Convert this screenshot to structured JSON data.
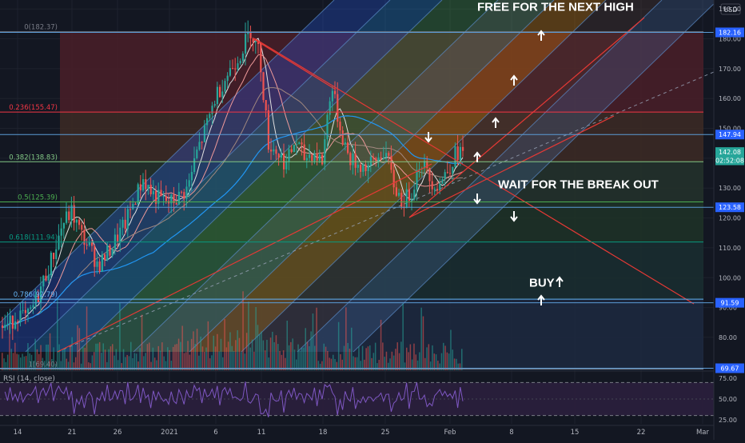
{
  "chart_data": {
    "type": "candlestick",
    "currency_label": "USD",
    "indicator_label": "RSI (14, close)",
    "price_axis": {
      "ylim": [
        69,
        193
      ],
      "ticks": [
        "190.00",
        "180.00",
        "170.00",
        "160.00",
        "150.00",
        "140.00",
        "130.00",
        "120.00",
        "110.00",
        "100.00",
        "90.00",
        "80.00"
      ]
    },
    "rsi_axis": {
      "ylim": [
        20,
        82
      ],
      "ticks": [
        "75.00",
        "50.00",
        "25.00"
      ],
      "overbought": 70,
      "oversold": 30
    },
    "date_axis": {
      "labels": [
        "14",
        "21",
        "26",
        "2021",
        "6",
        "11",
        "18",
        "25",
        "Feb",
        "8",
        "15",
        "22",
        "Mar"
      ]
    },
    "fib_levels": [
      {
        "label": "0(182.37)",
        "value": 182.37,
        "color": "#787b86"
      },
      {
        "label": "0.236(155.47)",
        "value": 155.47,
        "color": "#f23645"
      },
      {
        "label": "0.382(138.83)",
        "value": 138.83,
        "color": "#81c784"
      },
      {
        "label": "0.5(125.39)",
        "value": 125.39,
        "color": "#4caf50"
      },
      {
        "label": "0.618(111.94)",
        "value": 111.94,
        "color": "#089981"
      },
      {
        "label": "0.786(92.79)",
        "value": 92.79,
        "color": "#64b5f6"
      },
      {
        "label": "1(69.40)",
        "value": 69.4,
        "color": "#787b86"
      }
    ],
    "price_labels": [
      {
        "text": "182.16",
        "value": 182.16,
        "color": "#2962ff"
      },
      {
        "text": "147.94",
        "value": 147.94,
        "color": "#2962ff"
      },
      {
        "text": "142.08",
        "value": 142.08,
        "color": "#26a69a"
      },
      {
        "text": "02:52:08",
        "value": 139.3,
        "color": "#26a69a"
      },
      {
        "text": "123.58",
        "value": 123.58,
        "color": "#2962ff"
      },
      {
        "text": "91.59",
        "value": 91.59,
        "color": "#2962ff"
      },
      {
        "text": "69.67",
        "value": 69.67,
        "color": "#2962ff"
      }
    ],
    "annotations": [
      {
        "text": "FREE FOR THE NEXT HIGH",
        "value": 191,
        "day": 42
      },
      {
        "text": "WAIT FOR THE BREAK OUT",
        "value": 131.5,
        "day": 52
      },
      {
        "text": "BUY",
        "value": 98.6,
        "day": 58
      }
    ],
    "arrows": [
      {
        "dir": "up",
        "day": 59.2,
        "value": 186
      },
      {
        "dir": "up",
        "day": 55.6,
        "value": 172
      },
      {
        "dir": "up",
        "day": 53,
        "value": 155
      },
      {
        "dir": "up",
        "day": 50.3,
        "value": 143
      },
      {
        "dir": "down",
        "day": 44.4,
        "value": 147
      },
      {
        "dir": "down",
        "day": 50.2,
        "value": 126
      },
      {
        "dir": "down",
        "day": 54.5,
        "value": 119.5
      },
      {
        "dir": "up",
        "day": 61.5,
        "value": 98.5
      },
      {
        "dir": "up",
        "day": 59.3,
        "value": 89.5
      }
    ],
    "close_path": [
      [
        0,
        84
      ],
      [
        1,
        88
      ],
      [
        2,
        86
      ],
      [
        3,
        92
      ],
      [
        4,
        100
      ],
      [
        5,
        108
      ],
      [
        6,
        118
      ],
      [
        7,
        122
      ],
      [
        8,
        115
      ],
      [
        9,
        110
      ],
      [
        10,
        104
      ],
      [
        11,
        108
      ],
      [
        12,
        113
      ],
      [
        13,
        118
      ],
      [
        14,
        126
      ],
      [
        15,
        133
      ],
      [
        16,
        128
      ],
      [
        17,
        126
      ],
      [
        18,
        125
      ],
      [
        19,
        127
      ],
      [
        20,
        130
      ],
      [
        21,
        142
      ],
      [
        22,
        150
      ],
      [
        23,
        160
      ],
      [
        24,
        166
      ],
      [
        25,
        171
      ],
      [
        26,
        176
      ],
      [
        27,
        183
      ],
      [
        28,
        175
      ],
      [
        29,
        145
      ],
      [
        30,
        142
      ],
      [
        31,
        138
      ],
      [
        32,
        146
      ],
      [
        33,
        140
      ],
      [
        34,
        142
      ],
      [
        35,
        139
      ],
      [
        36,
        165
      ],
      [
        37,
        150
      ],
      [
        38,
        140
      ],
      [
        39,
        138
      ],
      [
        40,
        137
      ],
      [
        41,
        139
      ],
      [
        42,
        143
      ],
      [
        43,
        131
      ],
      [
        44,
        125
      ],
      [
        45,
        129
      ],
      [
        46,
        140
      ],
      [
        47,
        133
      ],
      [
        48,
        131
      ],
      [
        49,
        136
      ],
      [
        50,
        142
      ]
    ]
  }
}
